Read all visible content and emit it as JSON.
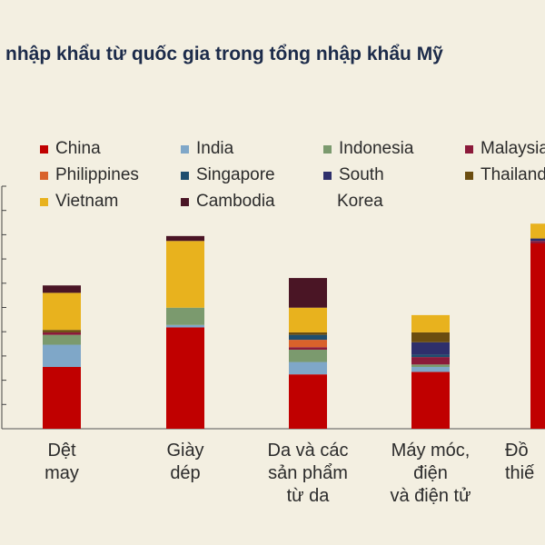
{
  "title": "nhập khẩu từ quốc gia trong tổng nhập khẩu Mỹ",
  "legend": [
    {
      "name": "China",
      "color": "#c00000"
    },
    {
      "name": "India",
      "color": "#7fa7c8"
    },
    {
      "name": "Indonesia",
      "color": "#7b9a6e"
    },
    {
      "name": "Malaysia",
      "color": "#8b1a3a"
    },
    {
      "name": "Philippines",
      "color": "#d9622b"
    },
    {
      "name": "Singapore",
      "color": "#1f4e6e"
    },
    {
      "name": "South",
      "color": "#2e2f6b"
    },
    {
      "name": "Thailand",
      "color": "#6b4d10"
    },
    {
      "name": "Vietnam",
      "color": "#e8b21e"
    },
    {
      "name": "Cambodia",
      "color": "#4a1525"
    }
  ],
  "legend_extra": "Korea",
  "chart_data": {
    "type": "bar",
    "stacked": true,
    "categories": [
      "Dệt\nmay",
      "Giày\ndép",
      "Da và các\nsản phẩm\ntừ da",
      "Máy móc,\nđiện\nvà điện tử",
      "Đồ\nthiế"
    ],
    "series": [
      {
        "name": "China",
        "values": [
          25,
          41,
          22,
          23,
          75
        ]
      },
      {
        "name": "India",
        "values": [
          9,
          1,
          5,
          2,
          0
        ]
      },
      {
        "name": "Indonesia",
        "values": [
          4,
          7,
          5,
          1,
          0
        ]
      },
      {
        "name": "Malaysia",
        "values": [
          1,
          0,
          1,
          3,
          1
        ]
      },
      {
        "name": "Philippines",
        "values": [
          0,
          0,
          3,
          0,
          0
        ]
      },
      {
        "name": "Singapore",
        "values": [
          0,
          0,
          2,
          1,
          0
        ]
      },
      {
        "name": "South",
        "values": [
          0,
          0,
          0,
          5,
          1
        ]
      },
      {
        "name": "Thailand",
        "values": [
          1,
          0,
          1,
          4,
          0
        ]
      },
      {
        "name": "Vietnam",
        "values": [
          15,
          27,
          10,
          7,
          6
        ]
      },
      {
        "name": "Cambodia",
        "values": [
          3,
          2,
          12,
          0,
          0
        ]
      }
    ],
    "ylim": [
      0,
      100
    ],
    "grid": false
  }
}
